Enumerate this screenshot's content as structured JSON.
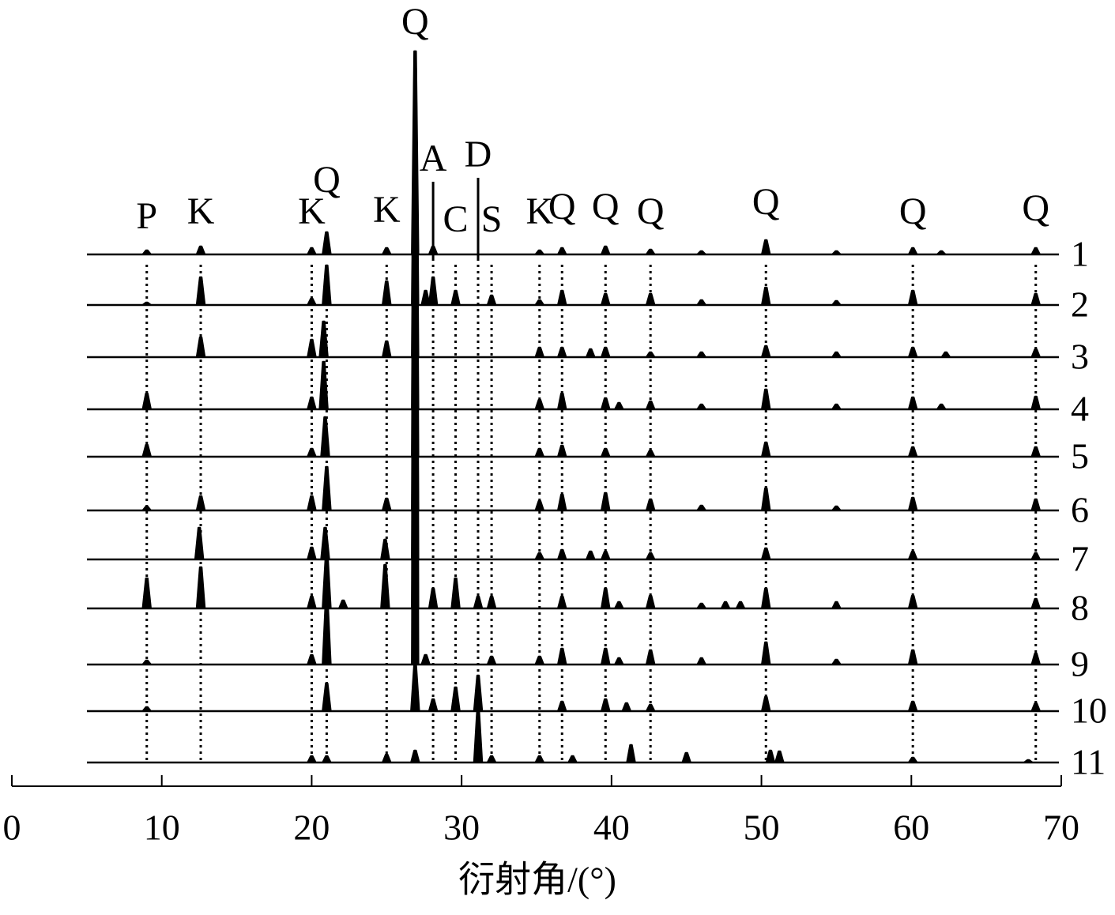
{
  "chart_data": {
    "type": "line",
    "xlabel": "衍射角/(°)",
    "xlim": [
      0,
      70
    ],
    "xticks": [
      0,
      10,
      20,
      30,
      40,
      50,
      60,
      70
    ],
    "color": "#000000",
    "annotations": [
      {
        "text": "P",
        "x": 9.0
      },
      {
        "text": "K",
        "x": 12.6
      },
      {
        "text": "K",
        "x": 20.0
      },
      {
        "text": "Q",
        "x": 21.0
      },
      {
        "text": "K",
        "x": 25.0
      },
      {
        "text": "Q",
        "x": 26.9
      },
      {
        "text": "A",
        "x": 28.1
      },
      {
        "text": "C",
        "x": 29.6
      },
      {
        "text": "D",
        "x": 31.1
      },
      {
        "text": "S",
        "x": 32.0
      },
      {
        "text": "K",
        "x": 35.2
      },
      {
        "text": "Q",
        "x": 36.7
      },
      {
        "text": "Q",
        "x": 39.6
      },
      {
        "text": "Q",
        "x": 42.6
      },
      {
        "text": "Q",
        "x": 50.3
      },
      {
        "text": "Q",
        "x": 60.1
      },
      {
        "text": "Q",
        "x": 68.3
      }
    ],
    "series": [
      {
        "name": "1",
        "x": [
          9.0,
          12.6,
          20.0,
          21.0,
          25.0,
          26.9,
          28.1,
          35.2,
          36.7,
          39.6,
          42.6,
          46.0,
          50.3,
          55.0,
          60.1,
          62.0,
          68.3
        ],
        "values": [
          5,
          10,
          8,
          28,
          8,
          257,
          10,
          5,
          8,
          10,
          6,
          4,
          18,
          4,
          8,
          4,
          8
        ]
      },
      {
        "name": "2",
        "x": [
          9.0,
          12.6,
          20.0,
          21.0,
          25.0,
          26.9,
          27.6,
          28.1,
          29.6,
          32.0,
          35.2,
          36.7,
          39.6,
          42.6,
          46.0,
          50.3,
          55.0,
          60.1,
          68.3
        ],
        "values": [
          3,
          35,
          8,
          50,
          30,
          300,
          18,
          35,
          18,
          12,
          6,
          18,
          14,
          14,
          6,
          22,
          5,
          18,
          14
        ]
      },
      {
        "name": "3",
        "x": [
          12.6,
          20.0,
          20.8,
          25.0,
          26.9,
          35.2,
          36.7,
          38.6,
          39.6,
          42.6,
          46.0,
          50.3,
          55.0,
          60.1,
          62.3,
          68.3
        ],
        "values": [
          25,
          22,
          45,
          20,
          350,
          12,
          12,
          10,
          12,
          6,
          6,
          14,
          6,
          12,
          6,
          10
        ]
      },
      {
        "name": "4",
        "x": [
          9.0,
          20.0,
          20.8,
          26.9,
          35.2,
          36.7,
          39.6,
          40.5,
          42.6,
          46.0,
          50.3,
          55.0,
          60.1,
          62.0,
          68.3
        ],
        "values": [
          20,
          15,
          60,
          400,
          12,
          20,
          14,
          8,
          10,
          6,
          25,
          6,
          15,
          6,
          16
        ]
      },
      {
        "name": "5",
        "x": [
          9.0,
          20.0,
          20.9,
          26.9,
          35.2,
          36.7,
          39.6,
          42.6,
          50.3,
          60.1,
          68.3
        ],
        "values": [
          15,
          10,
          50,
          470,
          10,
          14,
          10,
          8,
          18,
          12,
          12
        ]
      },
      {
        "name": "6",
        "x": [
          9.0,
          12.6,
          20.0,
          21.0,
          25.0,
          26.9,
          35.2,
          36.7,
          39.6,
          42.6,
          46.0,
          50.3,
          55.0,
          60.1,
          68.3
        ],
        "values": [
          5,
          18,
          18,
          55,
          15,
          530,
          12,
          20,
          22,
          14,
          6,
          28,
          5,
          16,
          14
        ]
      },
      {
        "name": "7",
        "x": [
          12.5,
          20.0,
          20.9,
          24.9,
          26.9,
          35.2,
          36.7,
          38.6,
          39.6,
          42.6,
          50.3,
          60.1,
          68.3
        ],
        "values": [
          40,
          15,
          40,
          25,
          600,
          8,
          12,
          10,
          10,
          8,
          14,
          10,
          8
        ]
      },
      {
        "name": "8",
        "x": [
          9.0,
          12.6,
          20.0,
          21.0,
          22.1,
          24.9,
          26.9,
          28.1,
          29.6,
          31.1,
          32.0,
          36.7,
          39.6,
          40.5,
          42.6,
          46.0,
          47.6,
          48.6,
          50.3,
          55.0,
          60.1,
          68.3
        ],
        "values": [
          38,
          52,
          15,
          70,
          10,
          55,
          660,
          25,
          38,
          15,
          15,
          15,
          25,
          8,
          16,
          6,
          8,
          8,
          25,
          8,
          16,
          12
        ]
      },
      {
        "name": "9",
        "x": [
          9.0,
          20.0,
          21.0,
          26.9,
          27.6,
          32.0,
          35.2,
          36.7,
          39.6,
          40.5,
          42.6,
          46.0,
          50.3,
          55.0,
          60.1,
          68.3
        ],
        "values": [
          5,
          12,
          85,
          720,
          12,
          10,
          10,
          20,
          20,
          8,
          18,
          8,
          28,
          6,
          18,
          14
        ]
      },
      {
        "name": "10",
        "x": [
          9.0,
          21.0,
          26.9,
          28.1,
          29.6,
          31.1,
          36.7,
          39.6,
          41.0,
          42.6,
          50.3,
          60.1,
          68.3
        ],
        "values": [
          5,
          35,
          60,
          15,
          30,
          45,
          12,
          15,
          10,
          8,
          18,
          12,
          10
        ]
      },
      {
        "name": "11",
        "x": [
          20.0,
          21.0,
          25.0,
          26.9,
          31.1,
          32.0,
          35.2,
          37.4,
          41.3,
          45.0,
          50.6,
          51.2,
          60.1,
          67.8
        ],
        "values": [
          8,
          8,
          10,
          15,
          68,
          8,
          8,
          8,
          22,
          12,
          15,
          14,
          6,
          3
        ]
      }
    ]
  }
}
